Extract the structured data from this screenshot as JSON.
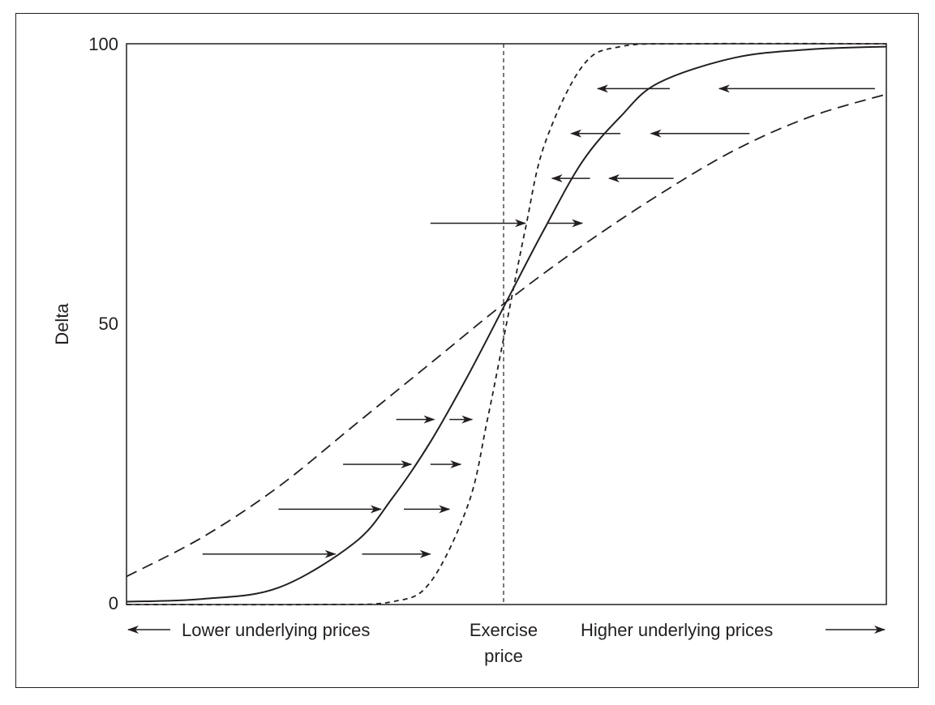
{
  "chart_data": {
    "type": "line",
    "title": "",
    "xlabel": "",
    "ylabel": "Delta",
    "ylim": [
      0,
      100
    ],
    "xlim": [
      -1,
      1
    ],
    "y_ticks": [
      "0",
      "50",
      "100"
    ],
    "grid": false,
    "legend": "none",
    "annotations": {
      "lower": "Lower underlying prices",
      "exercise_line1": "Exercise",
      "exercise_line2": "price",
      "higher": "Higher underlying prices"
    },
    "series": [
      {
        "style": "long-dash",
        "x": [
          -1,
          -0.8,
          -0.6,
          -0.4,
          -0.2,
          0,
          0.2,
          0.4,
          0.6,
          0.8,
          1
        ],
        "y": [
          5,
          12,
          21,
          32,
          43,
          54,
          64,
          73,
          81,
          87,
          91
        ]
      },
      {
        "style": "solid",
        "x": [
          -1,
          -0.8,
          -0.6,
          -0.4,
          -0.3,
          -0.2,
          -0.1,
          0,
          0.1,
          0.2,
          0.3,
          0.4,
          0.6,
          0.8,
          1
        ],
        "y": [
          0.5,
          1,
          3,
          11,
          19,
          29,
          41,
          54,
          67,
          79,
          87,
          93,
          97.5,
          99,
          99.5
        ]
      },
      {
        "style": "short-dash",
        "x": [
          -1,
          -0.5,
          -0.3,
          -0.2,
          -0.1,
          -0.05,
          0,
          0.05,
          0.1,
          0.2,
          0.3,
          0.5,
          1
        ],
        "y": [
          0,
          0,
          0.5,
          4,
          18,
          33,
          50,
          67,
          82,
          96,
          99.5,
          100,
          100
        ]
      }
    ],
    "arrows_right": [
      {
        "y": 9,
        "segments": [
          [
            -0.8,
            -0.45
          ],
          [
            -0.38,
            -0.2
          ]
        ]
      },
      {
        "y": 17,
        "segments": [
          [
            -0.6,
            -0.33
          ],
          [
            -0.27,
            -0.15
          ]
        ]
      },
      {
        "y": 25,
        "segments": [
          [
            -0.43,
            -0.25
          ],
          [
            -0.2,
            -0.12
          ]
        ]
      },
      {
        "y": 33,
        "segments": [
          [
            -0.29,
            -0.19
          ],
          [
            -0.15,
            -0.09
          ]
        ]
      }
    ],
    "arrows_left": [
      {
        "y": 68,
        "segments": [
          [
            -0.2,
            0.05
          ],
          [
            0.11,
            0.2
          ]
        ]
      },
      {
        "y": 76,
        "segments": [
          [
            0.22,
            0.12
          ],
          [
            0.44,
            0.27
          ]
        ]
      },
      {
        "y": 84,
        "segments": [
          [
            0.3,
            0.17
          ],
          [
            0.64,
            0.38
          ]
        ]
      },
      {
        "y": 92,
        "segments": [
          [
            0.43,
            0.24
          ],
          [
            0.97,
            0.56
          ]
        ]
      }
    ]
  }
}
